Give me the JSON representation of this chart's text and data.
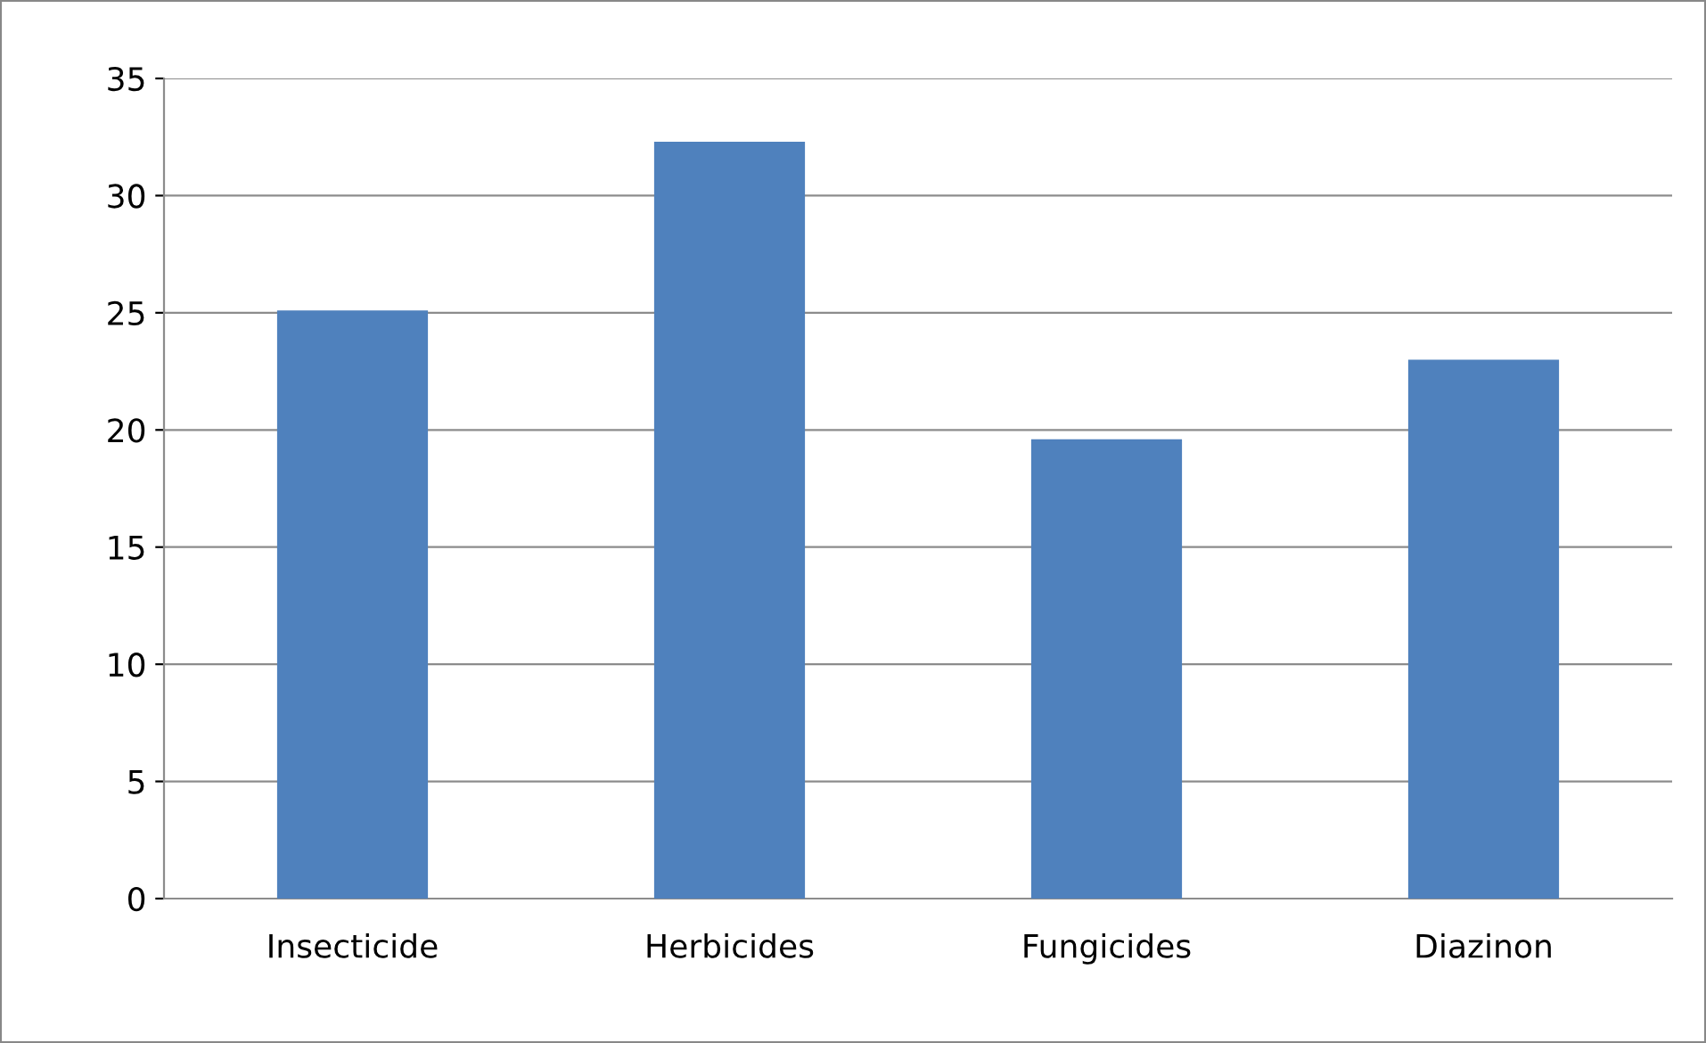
{
  "chart_data": {
    "type": "bar",
    "categories": [
      "Insecticide",
      "Herbicides",
      "Fungicides",
      "Diazinon"
    ],
    "values": [
      25.1,
      32.3,
      19.6,
      23.0
    ],
    "color": "#4f81bd",
    "ylim": [
      0,
      35
    ],
    "yticks": [
      0,
      5,
      10,
      15,
      20,
      25,
      30,
      35
    ],
    "grid": "y"
  }
}
